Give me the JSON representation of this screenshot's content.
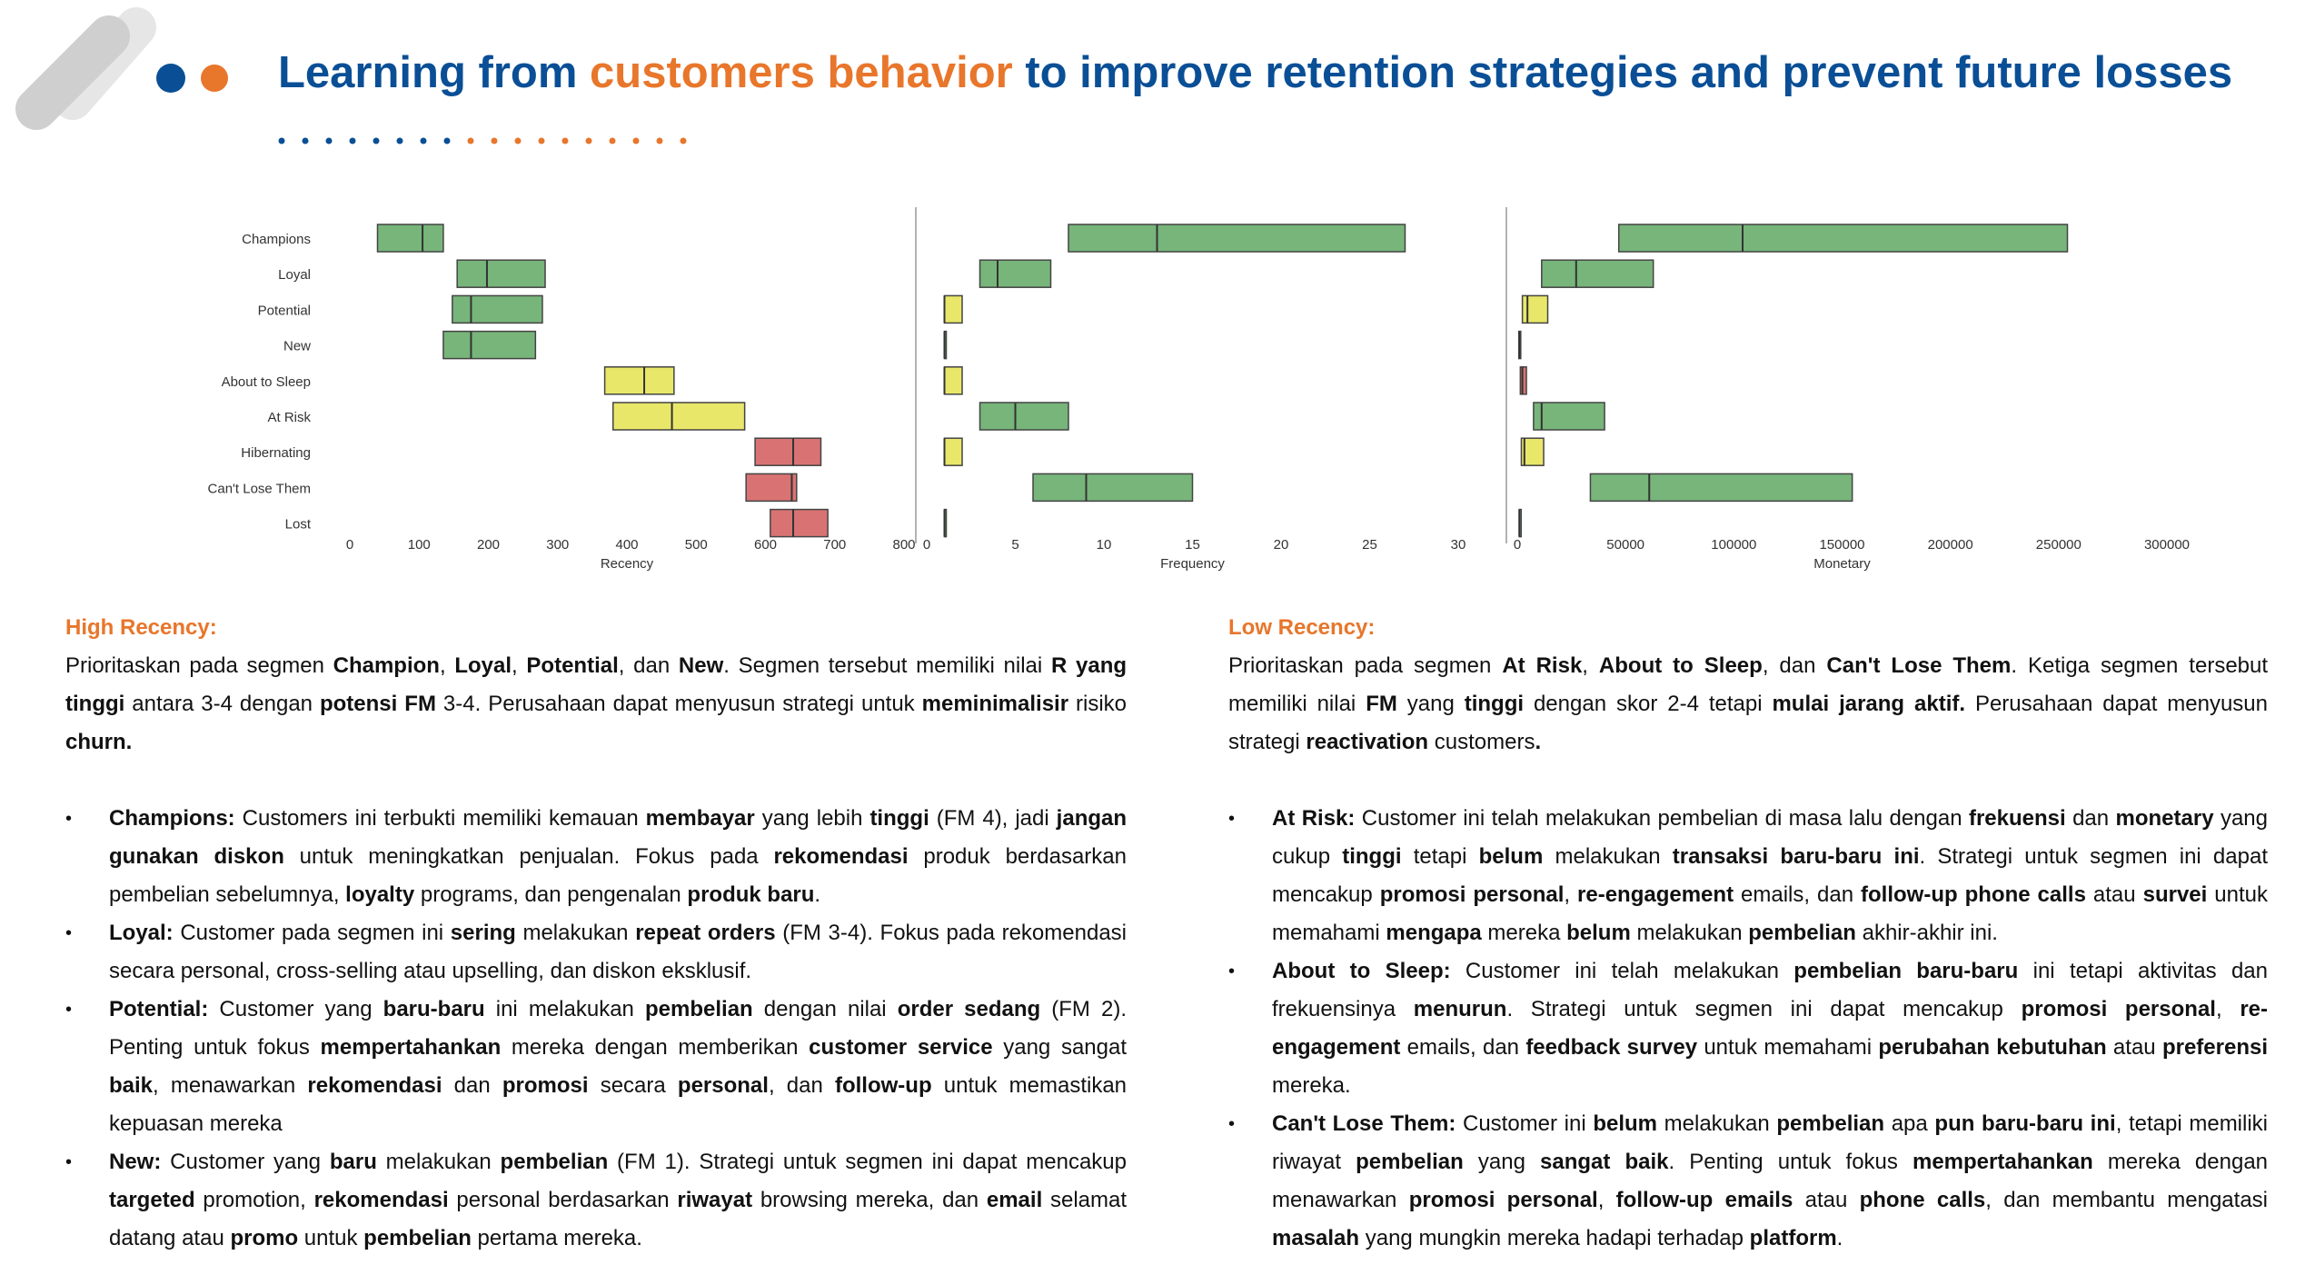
{
  "header": {
    "title_part1": "Learning from ",
    "title_highlight": "customers behavior",
    "title_part2": " to improve retention strategies and prevent future losses"
  },
  "colors": {
    "brand_blue": "#0a4f96",
    "accent_orange": "#e8762b",
    "green": "#77b57a",
    "yellow": "#e9e76a",
    "red": "#d97373"
  },
  "chart_data": [
    {
      "type": "boxplot",
      "orientation": "horizontal",
      "xlabel": "Recency",
      "categories": [
        "Champions",
        "Loyal",
        "Potential",
        "New",
        "About to Sleep",
        "At Risk",
        "Hibernating",
        "Can't Lose Them",
        "Lost"
      ],
      "q1": [
        40,
        155,
        148,
        135,
        368,
        380,
        585,
        572,
        607
      ],
      "median": [
        105,
        198,
        175,
        175,
        425,
        465,
        640,
        638,
        640
      ],
      "q3": [
        135,
        282,
        278,
        268,
        468,
        570,
        680,
        645,
        690
      ],
      "colors": [
        "green",
        "green",
        "green",
        "green",
        "yellow",
        "yellow",
        "red",
        "red",
        "red"
      ],
      "xlim": [
        0,
        800
      ],
      "xticks": [
        "0",
        "100",
        "200",
        "300",
        "400",
        "500",
        "600",
        "700",
        "800"
      ]
    },
    {
      "type": "boxplot",
      "orientation": "horizontal",
      "xlabel": "Frequency",
      "categories": [
        "Champions",
        "Loyal",
        "Potential",
        "New",
        "About to Sleep",
        "At Risk",
        "Hibernating",
        "Can't Lose Them",
        "Lost"
      ],
      "q1": [
        8,
        3,
        1,
        1,
        1,
        3,
        1,
        6,
        1
      ],
      "median": [
        13,
        4,
        1,
        1,
        1,
        5,
        1,
        9,
        1
      ],
      "q3": [
        27,
        7,
        2,
        1,
        2,
        8,
        2,
        15,
        1
      ],
      "colors": [
        "green",
        "green",
        "yellow",
        "green",
        "yellow",
        "green",
        "yellow",
        "green",
        "green"
      ],
      "xlim": [
        0,
        30
      ],
      "xticks": [
        "0",
        "5",
        "10",
        "15",
        "20",
        "25",
        "30"
      ]
    },
    {
      "type": "boxplot",
      "orientation": "horizontal",
      "xlabel": "Monetary",
      "categories": [
        "Champions",
        "Loyal",
        "Potential",
        "New",
        "About to Sleep",
        "At Risk",
        "Hibernating",
        "Can't Lose Them",
        "Lost"
      ],
      "q1": [
        50000,
        12000,
        2500,
        800,
        1500,
        8000,
        2000,
        36000,
        1000
      ],
      "median": [
        111000,
        29000,
        5000,
        1000,
        2500,
        12000,
        3500,
        65000,
        1000
      ],
      "q3": [
        271000,
        67000,
        15000,
        1200,
        4500,
        43000,
        13000,
        165000,
        1500
      ],
      "colors": [
        "green",
        "green",
        "yellow",
        "red",
        "red",
        "green",
        "yellow",
        "green",
        "green"
      ],
      "xlim": [
        0,
        320000
      ],
      "xticks": [
        "0",
        "50000",
        "100000",
        "150000",
        "200000",
        "250000",
        "300000"
      ]
    }
  ],
  "left_section": {
    "heading": "High Recency:",
    "intro": [
      {
        "t": "Prioritaskan pada segmen "
      },
      {
        "t": "Champion",
        "b": true
      },
      {
        "t": ", "
      },
      {
        "t": "Loyal",
        "b": true
      },
      {
        "t": ", "
      },
      {
        "t": "Potential",
        "b": true
      },
      {
        "t": ", dan "
      },
      {
        "t": "New",
        "b": true
      },
      {
        "t": ". Segmen tersebut memiliki nilai "
      },
      {
        "t": "R yang tinggi",
        "b": true
      },
      {
        "t": " antara 3-4 dengan "
      },
      {
        "t": "potensi FM",
        "b": true
      },
      {
        "t": " 3-4. Perusahaan dapat menyusun strategi untuk "
      },
      {
        "t": "meminimalisir",
        "b": true
      },
      {
        "t": " risiko "
      },
      {
        "t": "churn.",
        "b": true
      }
    ],
    "bullets": [
      [
        {
          "t": "Champions:",
          "b": true
        },
        {
          "t": " Customers ini terbukti memiliki kemauan "
        },
        {
          "t": "membayar",
          "b": true
        },
        {
          "t": " yang lebih "
        },
        {
          "t": "tinggi",
          "b": true
        },
        {
          "t": " (FM 4), jadi "
        },
        {
          "t": "jangan gunakan diskon",
          "b": true
        },
        {
          "t": " untuk meningkatkan penjualan. Fokus pada "
        },
        {
          "t": "rekomendasi",
          "b": true
        },
        {
          "t": " produk berdasarkan pembelian sebelumnya, "
        },
        {
          "t": "loyalty",
          "b": true
        },
        {
          "t": " programs, dan pengenalan "
        },
        {
          "t": "produk baru",
          "b": true
        },
        {
          "t": "."
        }
      ],
      [
        {
          "t": "Loyal:",
          "b": true
        },
        {
          "t": " Customer pada segmen ini "
        },
        {
          "t": "sering",
          "b": true
        },
        {
          "t": " melakukan "
        },
        {
          "t": "repeat orders",
          "b": true
        },
        {
          "t": " (FM 3-4). Fokus pada rekomendasi secara personal, cross-selling atau upselling, dan diskon eksklusif."
        }
      ],
      [
        {
          "t": "Potential:",
          "b": true
        },
        {
          "t": " Customer yang "
        },
        {
          "t": "baru-baru",
          "b": true
        },
        {
          "t": " ini melakukan "
        },
        {
          "t": "pembelian",
          "b": true
        },
        {
          "t": " dengan nilai "
        },
        {
          "t": "order sedang",
          "b": true
        },
        {
          "t": " (FM 2). Penting untuk fokus "
        },
        {
          "t": "mempertahankan",
          "b": true
        },
        {
          "t": " mereka dengan memberikan "
        },
        {
          "t": "customer service",
          "b": true
        },
        {
          "t": " yang sangat "
        },
        {
          "t": "baik",
          "b": true
        },
        {
          "t": ", menawarkan "
        },
        {
          "t": "rekomendasi",
          "b": true
        },
        {
          "t": " dan "
        },
        {
          "t": "promosi",
          "b": true
        },
        {
          "t": " secara "
        },
        {
          "t": "personal",
          "b": true
        },
        {
          "t": ", dan "
        },
        {
          "t": "follow-up",
          "b": true
        },
        {
          "t": " untuk memastikan kepuasan mereka"
        }
      ],
      [
        {
          "t": "New:",
          "b": true
        },
        {
          "t": " Customer yang "
        },
        {
          "t": "baru",
          "b": true
        },
        {
          "t": " melakukan "
        },
        {
          "t": "pembelian",
          "b": true
        },
        {
          "t": " (FM 1). Strategi untuk segmen ini dapat mencakup "
        },
        {
          "t": "targeted",
          "b": true
        },
        {
          "t": " promotion, "
        },
        {
          "t": "rekomendasi",
          "b": true
        },
        {
          "t": " personal berdasarkan "
        },
        {
          "t": "riwayat",
          "b": true
        },
        {
          "t": " browsing mereka, dan "
        },
        {
          "t": "email",
          "b": true
        },
        {
          "t": " selamat datang atau "
        },
        {
          "t": "promo",
          "b": true
        },
        {
          "t": " untuk "
        },
        {
          "t": "pembelian",
          "b": true
        },
        {
          "t": " pertama mereka."
        }
      ]
    ]
  },
  "right_section": {
    "heading": "Low Recency:",
    "intro": [
      {
        "t": "Prioritaskan pada segmen "
      },
      {
        "t": "At Risk",
        "b": true
      },
      {
        "t": ", "
      },
      {
        "t": "About to Sleep",
        "b": true
      },
      {
        "t": ", dan "
      },
      {
        "t": "Can't Lose Them",
        "b": true
      },
      {
        "t": ". Ketiga segmen tersebut memiliki nilai "
      },
      {
        "t": "FM",
        "b": true
      },
      {
        "t": " yang "
      },
      {
        "t": "tinggi",
        "b": true
      },
      {
        "t": " dengan skor 2-4 tetapi "
      },
      {
        "t": "mulai jarang aktif.",
        "b": true
      },
      {
        "t": " Perusahaan dapat menyusun strategi "
      },
      {
        "t": "reactivation",
        "b": true
      },
      {
        "t": " customers"
      },
      {
        "t": ".",
        "b": true
      }
    ],
    "bullets": [
      [
        {
          "t": "At Risk:",
          "b": true
        },
        {
          "t": " Customer ini telah melakukan pembelian di masa lalu dengan "
        },
        {
          "t": "frekuensi",
          "b": true
        },
        {
          "t": " dan "
        },
        {
          "t": "monetary",
          "b": true
        },
        {
          "t": " yang cukup "
        },
        {
          "t": "tinggi",
          "b": true
        },
        {
          "t": " tetapi "
        },
        {
          "t": "belum",
          "b": true
        },
        {
          "t": " melakukan "
        },
        {
          "t": "transaksi baru-baru ini",
          "b": true
        },
        {
          "t": ". Strategi untuk segmen ini dapat mencakup "
        },
        {
          "t": "promosi personal",
          "b": true
        },
        {
          "t": ", "
        },
        {
          "t": "re-engagement",
          "b": true
        },
        {
          "t": " emails, dan "
        },
        {
          "t": "follow-up phone calls",
          "b": true
        },
        {
          "t": " atau "
        },
        {
          "t": "survei",
          "b": true
        },
        {
          "t": " untuk memahami "
        },
        {
          "t": "mengapa",
          "b": true
        },
        {
          "t": " mereka "
        },
        {
          "t": "belum",
          "b": true
        },
        {
          "t": " melakukan "
        },
        {
          "t": "pembelian",
          "b": true
        },
        {
          "t": " akhir-akhir ini."
        }
      ],
      [
        {
          "t": "About to Sleep:",
          "b": true
        },
        {
          "t": " Customer ini telah melakukan "
        },
        {
          "t": "pembelian baru-baru",
          "b": true
        },
        {
          "t": " ini tetapi aktivitas dan frekuensinya "
        },
        {
          "t": "menurun",
          "b": true
        },
        {
          "t": ". Strategi untuk segmen ini dapat mencakup "
        },
        {
          "t": "promosi personal",
          "b": true
        },
        {
          "t": ", "
        },
        {
          "t": "re-engagement",
          "b": true
        },
        {
          "t": " emails, dan "
        },
        {
          "t": "feedback survey",
          "b": true
        },
        {
          "t": " untuk memahami "
        },
        {
          "t": "perubahan kebutuhan",
          "b": true
        },
        {
          "t": " atau "
        },
        {
          "t": "preferensi",
          "b": true
        },
        {
          "t": " mereka."
        }
      ],
      [
        {
          "t": "Can't Lose Them:",
          "b": true
        },
        {
          "t": " Customer ini "
        },
        {
          "t": "belum",
          "b": true
        },
        {
          "t": " melakukan "
        },
        {
          "t": "pembelian",
          "b": true
        },
        {
          "t": " apa "
        },
        {
          "t": "pun baru-baru ini",
          "b": true
        },
        {
          "t": ", tetapi memiliki riwayat "
        },
        {
          "t": "pembelian",
          "b": true
        },
        {
          "t": " yang "
        },
        {
          "t": "sangat baik",
          "b": true
        },
        {
          "t": ". Penting untuk fokus "
        },
        {
          "t": "mempertahankan",
          "b": true
        },
        {
          "t": " mereka dengan menawarkan "
        },
        {
          "t": "promosi personal",
          "b": true
        },
        {
          "t": ", "
        },
        {
          "t": "follow-up emails",
          "b": true
        },
        {
          "t": " atau "
        },
        {
          "t": "phone calls",
          "b": true
        },
        {
          "t": ", dan membantu mengatasi "
        },
        {
          "t": "masalah",
          "b": true
        },
        {
          "t": " yang mungkin mereka hadapi terhadap "
        },
        {
          "t": "platform",
          "b": true
        },
        {
          "t": "."
        }
      ]
    ]
  }
}
